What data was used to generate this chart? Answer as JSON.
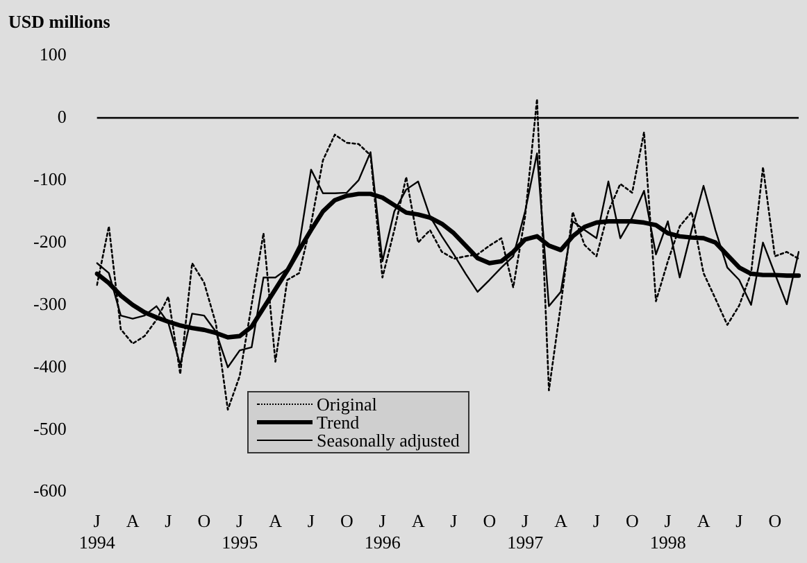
{
  "chart_data": {
    "type": "line",
    "ylabel": "USD millions",
    "categories": [
      "J\n1994",
      null,
      null,
      "A",
      null,
      null,
      "J",
      null,
      null,
      "O",
      null,
      null,
      "J\n1995",
      null,
      null,
      "A",
      null,
      null,
      "J",
      null,
      null,
      "O",
      null,
      null,
      "J\n1996",
      null,
      null,
      "A",
      null,
      null,
      "J",
      null,
      null,
      "O",
      null,
      null,
      "J\n1997",
      null,
      null,
      "A",
      null,
      null,
      "J",
      null,
      null,
      "O",
      null,
      null,
      "J\n1998",
      null,
      null,
      "A",
      null,
      null,
      "J",
      null,
      null,
      "O",
      null,
      null
    ],
    "series": [
      {
        "name": "Original",
        "color": "#000000",
        "line_style": "dotted",
        "values": [
          -268,
          -174,
          -339,
          -362,
          -350,
          -324,
          -287,
          -411,
          -233,
          -264,
          -330,
          -468,
          -414,
          -300,
          -185,
          -391,
          -260,
          -249,
          -170,
          -68,
          -27,
          -40,
          -42,
          -60,
          -256,
          -180,
          -95,
          -200,
          -180,
          -215,
          -226,
          -222,
          -219,
          -205,
          -193,
          -272,
          -158,
          30,
          -437,
          -300,
          -151,
          -204,
          -222,
          -150,
          -106,
          -120,
          -23,
          -294,
          -230,
          -174,
          -151,
          -249,
          -290,
          -332,
          -301,
          -249,
          -79,
          -222,
          -215,
          -226
        ]
      },
      {
        "name": "Trend",
        "color": "#000000",
        "line_style": "solid",
        "values": [
          -250,
          -265,
          -285,
          -300,
          -312,
          -320,
          -327,
          -333,
          -337,
          -340,
          -345,
          -352,
          -350,
          -335,
          -305,
          -275,
          -245,
          -212,
          -180,
          -150,
          -132,
          -125,
          -122,
          -122,
          -128,
          -140,
          -152,
          -155,
          -160,
          -170,
          -185,
          -205,
          -225,
          -233,
          -230,
          -215,
          -195,
          -190,
          -205,
          -212,
          -190,
          -175,
          -168,
          -166,
          -166,
          -166,
          -168,
          -172,
          -185,
          -190,
          -192,
          -193,
          -200,
          -220,
          -240,
          -250,
          -252,
          -252,
          -253,
          -253
        ]
      },
      {
        "name": "Seasonally adjusted",
        "color": "#000000",
        "line_style": "solid",
        "values": [
          -233,
          -249,
          -317,
          -322,
          -317,
          -302,
          -329,
          -396,
          -314,
          -317,
          -343,
          -400,
          -373,
          -368,
          -256,
          -256,
          -242,
          -204,
          -83,
          -121,
          -121,
          -120,
          -100,
          -55,
          -230,
          -150,
          -115,
          -102,
          -158,
          -190,
          -219,
          -250,
          -279,
          -260,
          -240,
          -222,
          -150,
          -57,
          -302,
          -279,
          -166,
          -180,
          -193,
          -102,
          -193,
          -160,
          -117,
          -219,
          -166,
          -256,
          -180,
          -109,
          -180,
          -240,
          -260,
          -300,
          -200,
          -250,
          -299,
          -215
        ]
      }
    ],
    "ylim": [
      -600,
      100
    ],
    "yticks": [
      -600,
      -500,
      -400,
      -300,
      -200,
      -100,
      0,
      100
    ],
    "ref_lines": [
      {
        "axis": "y",
        "value": 0
      }
    ],
    "legend": "bottom left"
  }
}
